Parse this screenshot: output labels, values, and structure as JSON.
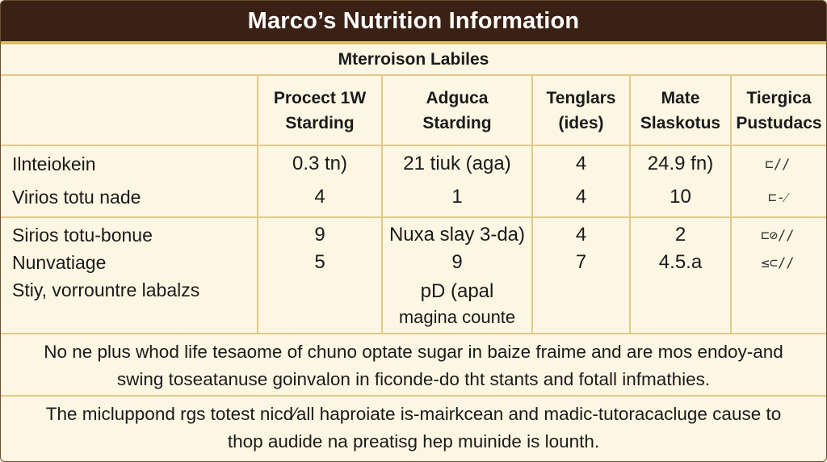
{
  "title": "Marco’s Nutrition Information",
  "subtitle": "Mterroison Labiles",
  "columns": [
    {
      "line1": "Procect 1W",
      "line2": "Starding"
    },
    {
      "line1": "Adguca",
      "line2": "Starding"
    },
    {
      "line1": "Tenglars",
      "line2": "(ides)"
    },
    {
      "line1": "Mate",
      "line2": "Slaskotus"
    },
    {
      "line1": "Tiergica",
      "line2": "Pustudacs"
    }
  ],
  "group1": {
    "rows": [
      {
        "label": "Ilnteiokein",
        "values": [
          "0.3 tn)",
          "21 tiuk (aga)",
          "4",
          "24.9 fn)"
        ],
        "icon": "⊏//"
      },
      {
        "label": "Virios totu nade",
        "values": [
          "4",
          "1",
          "4",
          "10"
        ],
        "icon": "⊏-⁄"
      }
    ]
  },
  "group2": {
    "rows": [
      {
        "label": "Sirios totu-bonue",
        "values": [
          "9",
          "Nuxa slay 3-da)",
          "4",
          "2"
        ],
        "icon": "⊏⊘//"
      },
      {
        "label": "Nunvatiage",
        "values": [
          "5",
          "9",
          "7",
          "4.5.a"
        ],
        "icon": "≤⊂//"
      },
      {
        "label": "Stiy, vorrountre labalzs",
        "values": [
          "",
          "pD (apal",
          "",
          ""
        ],
        "icon": ""
      },
      {
        "label": "",
        "values": [
          "",
          "magina counte",
          "",
          ""
        ],
        "icon": ""
      }
    ]
  },
  "notes": [
    {
      "line1": "No ne plus whod life tesaome of chuno optate sugar in baize fraime and are mos endoy-and",
      "line2": "swing toseatanuse goinvalon in ficonde-do tht stants and fotall infmathies."
    },
    {
      "line1": "The micluppond rgs totest nicd⁄all haproiate is-mairkcean and madic-tutoracacluge cause to",
      "line2": "thop audide na preatisg hep muinide is lounth."
    }
  ],
  "colors": {
    "title_bg": "#3b2113",
    "title_border": "#d8bd6a",
    "page_bg": "#fdf6e3",
    "grid": "#e0c98a"
  },
  "icons": [
    "pencil-icon",
    "dash-icon"
  ]
}
